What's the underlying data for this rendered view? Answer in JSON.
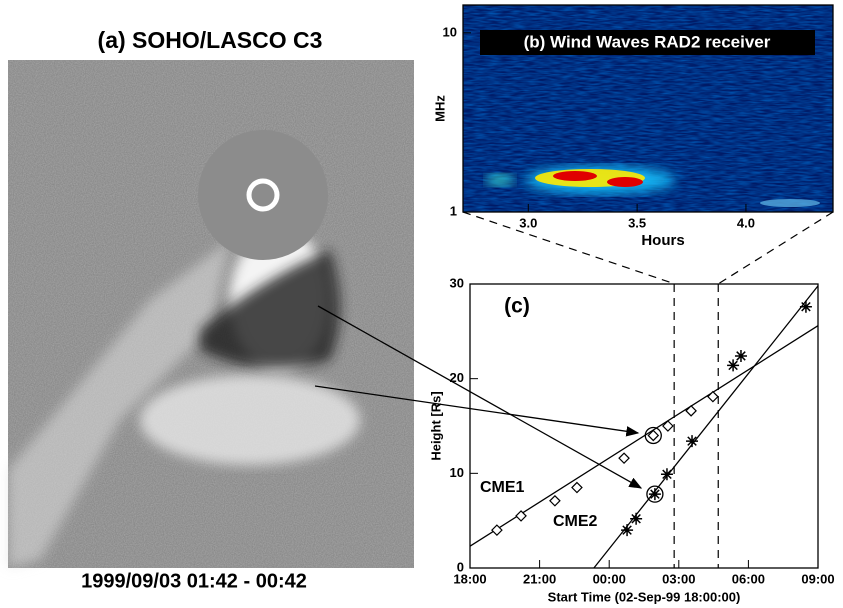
{
  "panel_a": {
    "title": "(a) SOHO/LASCO C3",
    "caption": "1999/09/03 01:42 - 00:42"
  },
  "chart_data": [
    {
      "type": "spectrogram",
      "title": "(b) Wind Waves RAD2 receiver",
      "y_label": "MHz",
      "x_label": "Hours",
      "log_y": true,
      "xlim": [
        2.7,
        4.4
      ],
      "ylim": [
        1,
        14.3
      ],
      "xticks": [
        {
          "value": 3,
          "label": "3.0"
        },
        {
          "value": 3.5,
          "label": "3.5"
        },
        {
          "value": 4,
          "label": "4.0"
        }
      ],
      "yticks": [
        1,
        10
      ]
    },
    {
      "type": "scatter",
      "title": "(c)",
      "x_label": "Start Time (02-Sep-99 18:00:00)",
      "y_label": "Height [Rs]",
      "xlim": [
        0,
        15
      ],
      "ylim": [
        0,
        30
      ],
      "xticks": [
        {
          "value": 0,
          "label": "18:00"
        },
        {
          "value": 3,
          "label": "21:00"
        },
        {
          "value": 6,
          "label": "00:00"
        },
        {
          "value": 9,
          "label": "03:00"
        },
        {
          "value": 12,
          "label": "06:00"
        },
        {
          "value": 15,
          "label": "09:00"
        }
      ],
      "yticks": [
        0,
        10,
        20,
        30
      ],
      "vlines": [
        8.8,
        10.7
      ],
      "series": [
        {
          "name": "CME1",
          "marker": "diamond",
          "color": "#000",
          "circled": 5,
          "x": [
            1.16,
            2.2,
            3.66,
            4.61,
            6.64,
            7.9,
            8.53,
            9.53,
            10.47
          ],
          "values": [
            4.0,
            5.5,
            7.1,
            8.5,
            11.6,
            14.0,
            15.0,
            16.6,
            18.1
          ],
          "fit_x": [
            0,
            15
          ],
          "fit_values": [
            2.3,
            25.6
          ]
        },
        {
          "name": "CME2",
          "marker": "asterisk",
          "color": "#000",
          "circled": 2,
          "x": [
            6.77,
            7.16,
            7.97,
            8.49,
            9.57,
            11.34,
            11.68,
            14.48
          ],
          "values": [
            4.0,
            5.2,
            7.8,
            9.9,
            13.4,
            21.4,
            22.4,
            27.6
          ],
          "fit_x": [
            5.34,
            15
          ],
          "fit_values": [
            0,
            29.8
          ]
        }
      ]
    }
  ]
}
